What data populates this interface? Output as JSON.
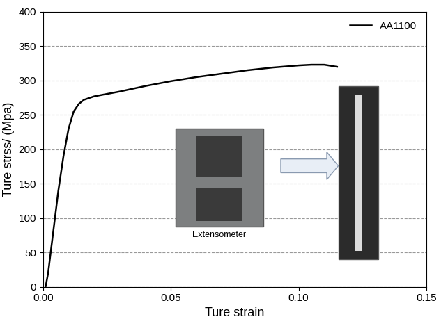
{
  "chart_data": {
    "type": "line",
    "x_label": "Ture strain",
    "y_label": "Ture strss/ (Mpa)",
    "series": [
      {
        "name": "AA1100",
        "color": "#000000",
        "line_style": "solid",
        "x": [
          0.001,
          0.002,
          0.004,
          0.006,
          0.008,
          0.01,
          0.012,
          0.014,
          0.016,
          0.02,
          0.03,
          0.04,
          0.05,
          0.06,
          0.07,
          0.08,
          0.09,
          0.1,
          0.105,
          0.11,
          0.115
        ],
        "values": [
          0,
          20,
          80,
          140,
          190,
          230,
          255,
          266,
          272,
          277,
          284,
          292,
          299,
          305,
          310,
          315,
          319,
          322,
          323,
          323,
          320
        ]
      }
    ],
    "xlim": [
      0,
      0.15
    ],
    "xticks": [
      {
        "value": 0,
        "label": "0.00"
      },
      0.05,
      {
        "value": 0.1,
        "label": "0.10"
      },
      0.15
    ],
    "ylim": [
      0,
      400
    ],
    "yticks": [
      0,
      50,
      100,
      150,
      200,
      250,
      300,
      350,
      400
    ],
    "grid": true,
    "legend": "upper right",
    "annotations": [
      "Extensometer"
    ]
  }
}
